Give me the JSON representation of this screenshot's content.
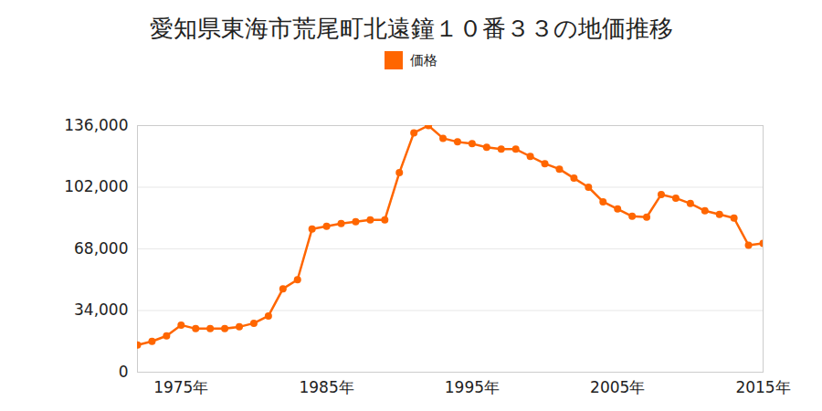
{
  "chart_data": {
    "type": "line",
    "title": "愛知県東海市荒尾町北遠鐘１０番３３の地価推移",
    "legend": "top",
    "grid": true,
    "marker": "circle",
    "x": [
      1972,
      1973,
      1974,
      1975,
      1976,
      1977,
      1978,
      1979,
      1980,
      1981,
      1982,
      1983,
      1984,
      1985,
      1986,
      1987,
      1988,
      1989,
      1990,
      1991,
      1992,
      1993,
      1994,
      1995,
      1996,
      1997,
      1998,
      1999,
      2000,
      2001,
      2002,
      2003,
      2004,
      2005,
      2006,
      2007,
      2008,
      2009,
      2010,
      2011,
      2012,
      2013,
      2014,
      2015
    ],
    "series": [
      {
        "name": "価格",
        "color": "#ff6600",
        "values": [
          15000,
          17000,
          20000,
          26000,
          24000,
          24000,
          24000,
          25000,
          27000,
          31000,
          46000,
          51000,
          79000,
          80500,
          82000,
          83000,
          84000,
          84000,
          110000,
          132000,
          136000,
          129000,
          127000,
          126000,
          124000,
          123000,
          123000,
          119000,
          115000,
          112000,
          107000,
          102000,
          94000,
          90000,
          86000,
          85500,
          98000,
          96000,
          93000,
          89000,
          87000,
          85000,
          70000,
          71000
        ]
      }
    ],
    "xlim": [
      1972,
      2015
    ],
    "xticks": [
      {
        "value": 1975,
        "label": "1975年"
      },
      {
        "value": 1985,
        "label": "1985年"
      },
      {
        "value": 1995,
        "label": "1995年"
      },
      {
        "value": 2005,
        "label": "2005年"
      },
      {
        "value": 2015,
        "label": "2015年"
      }
    ],
    "ylim": [
      0,
      136000
    ],
    "yticks": [
      0,
      {
        "value": 34000,
        "label": "34,000"
      },
      {
        "value": 68000,
        "label": "68,000"
      },
      {
        "value": 102000,
        "label": "102,000"
      },
      {
        "value": 136000,
        "label": "136,000"
      }
    ]
  }
}
